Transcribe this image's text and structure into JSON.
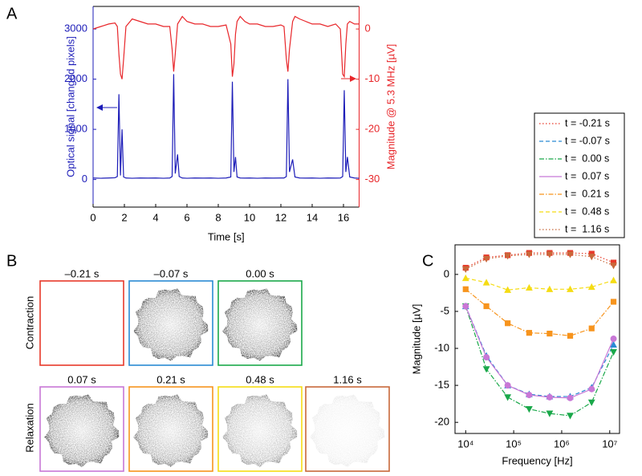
{
  "panel_labels": [
    "A",
    "B",
    "C"
  ],
  "chart_data": [
    {
      "type": "line",
      "xlabel": "Time [s]",
      "ylabel": "Optical signal [changed pixels]",
      "y2label": "Magnitude @ 5.3 MHz [µV]",
      "xlim": [
        0,
        17
      ],
      "xticks": [
        0,
        2,
        4,
        6,
        8,
        10,
        12,
        14,
        16
      ],
      "ylim": [
        -550,
        3450
      ],
      "yticks": [
        0,
        1000,
        2000,
        3000
      ],
      "y2lim": [
        -35.5,
        4.5
      ],
      "y2ticks": [
        -30,
        -20,
        -10,
        0
      ],
      "x": [
        0,
        0.5,
        1,
        1.4,
        1.55,
        1.65,
        1.75,
        1.85,
        1.95,
        2.1,
        2.5,
        3,
        3.5,
        4,
        4.5,
        4.9,
        5.05,
        5.15,
        5.25,
        5.4,
        5.5,
        5.7,
        6,
        6.5,
        7,
        7.5,
        8,
        8.5,
        8.8,
        8.9,
        9.0,
        9.1,
        9.2,
        9.4,
        9.7,
        10,
        10.5,
        11,
        11.5,
        12,
        12.2,
        12.35,
        12.45,
        12.55,
        12.75,
        12.9,
        13.2,
        13.6,
        14,
        14.5,
        15,
        15.5,
        15.8,
        15.95,
        16.05,
        16.15,
        16.25,
        16.4,
        16.7,
        17
      ],
      "series": [
        {
          "color": "#1c1cb8",
          "axis": "y",
          "values": [
            30,
            25,
            30,
            35,
            60,
            1700,
            80,
            1000,
            50,
            30,
            25,
            30,
            28,
            30,
            25,
            30,
            60,
            2100,
            120,
            500,
            60,
            30,
            25,
            30,
            28,
            30,
            25,
            30,
            50,
            1950,
            150,
            450,
            50,
            30,
            28,
            30,
            25,
            30,
            28,
            30,
            30,
            60,
            2000,
            150,
            400,
            50,
            30,
            28,
            30,
            25,
            30,
            28,
            30,
            60,
            1780,
            150,
            450,
            50,
            30,
            25
          ]
        },
        {
          "color": "#e8262a",
          "axis": "y2",
          "values": [
            0,
            0.5,
            1,
            1.2,
            0.5,
            -5,
            -9,
            -10,
            -6,
            0.5,
            2,
            1.5,
            1,
            1,
            0.5,
            0.5,
            -4,
            -8.5,
            -5,
            1,
            1.5,
            2.5,
            1.5,
            1,
            1,
            0.5,
            0.5,
            0.8,
            -3,
            -9.5,
            -7,
            -1,
            1.5,
            2.5,
            1.5,
            1,
            1,
            0.5,
            0.5,
            0.8,
            0.5,
            -6,
            -8.5,
            -4,
            1.5,
            2.5,
            2,
            1.5,
            1,
            1,
            0.5,
            1,
            0,
            -9,
            -9.5,
            -3,
            1,
            1.5,
            1,
            1
          ]
        }
      ]
    },
    {
      "type": "line",
      "xlabel": "Frequency [Hz]",
      "ylabel": "Magnitude [µV]",
      "xscale": "log",
      "xlim": [
        6000,
        16000000
      ],
      "xticks": [
        {
          "value": 10000,
          "label": "10⁴"
        },
        {
          "value": 100000,
          "label": "10⁵"
        },
        {
          "value": 1000000,
          "label": "10⁶"
        },
        {
          "value": 10000000,
          "label": "10⁷"
        }
      ],
      "ylim": [
        -21.5,
        4
      ],
      "yticks": [
        -20,
        -15,
        -10,
        -5,
        0
      ],
      "x": [
        10000,
        27000,
        75000,
        210000,
        560000,
        1500000,
        4200000,
        12000000
      ],
      "series": [
        {
          "name": "t = -0.21 s",
          "color": "#e8392a",
          "dash": "dotted",
          "marker": "square",
          "values": [
            0.9,
            2.3,
            2.6,
            2.9,
            2.9,
            2.9,
            2.8,
            1.6
          ]
        },
        {
          "name": "t = -0.07 s",
          "color": "#2a8ad4",
          "dash": "dashed",
          "marker": "triangle",
          "values": [
            -4.3,
            -11.0,
            -15.0,
            -16.2,
            -16.5,
            -16.5,
            -15.3,
            -9.5
          ]
        },
        {
          "name": "t =  0.00 s",
          "color": "#1aa84a",
          "dash": "dashdot",
          "marker": "down-triangle",
          "values": [
            -4.3,
            -12.8,
            -16.6,
            -18.2,
            -18.8,
            -19.1,
            -17.3,
            -10.5
          ]
        },
        {
          "name": "t =  0.07 s",
          "color": "#c877d6",
          "dash": "solid",
          "marker": "circle",
          "values": [
            -4.3,
            -11.2,
            -15.0,
            -16.3,
            -16.6,
            -16.7,
            -15.5,
            -8.7
          ]
        },
        {
          "name": "t =  0.21 s",
          "color": "#f7941d",
          "dash": "dashdot",
          "marker": "square",
          "values": [
            -2.0,
            -4.3,
            -6.6,
            -7.9,
            -8.0,
            -8.3,
            -7.3,
            -3.7
          ]
        },
        {
          "name": "t =  0.48 s",
          "color": "#f5dc14",
          "dash": "dashed",
          "marker": "triangle",
          "values": [
            -0.5,
            -1.1,
            -2.1,
            -1.8,
            -2.0,
            -2.0,
            -1.7,
            -0.8
          ]
        },
        {
          "name": "t =  1.16 s",
          "color": "#c8683a",
          "dash": "dotted",
          "marker": "down-triangle",
          "values": [
            0.7,
            2.1,
            2.5,
            2.7,
            2.7,
            2.7,
            2.4,
            1.2
          ]
        }
      ]
    }
  ],
  "images": {
    "row_labels": [
      "Contraction",
      "Relaxation"
    ],
    "frames": [
      {
        "label": "–0.21 s",
        "color": "#e8392a"
      },
      {
        "label": "–0.07 s",
        "color": "#2a8ad4"
      },
      {
        "label": "0.00 s",
        "color": "#1aa84a"
      },
      {
        "label": "0.07 s",
        "color": "#c877d6"
      },
      {
        "label": "0.21 s",
        "color": "#f7941d"
      },
      {
        "label": "0.48 s",
        "color": "#f5dc14"
      },
      {
        "label": "1.16 s",
        "color": "#c8683a"
      }
    ]
  }
}
